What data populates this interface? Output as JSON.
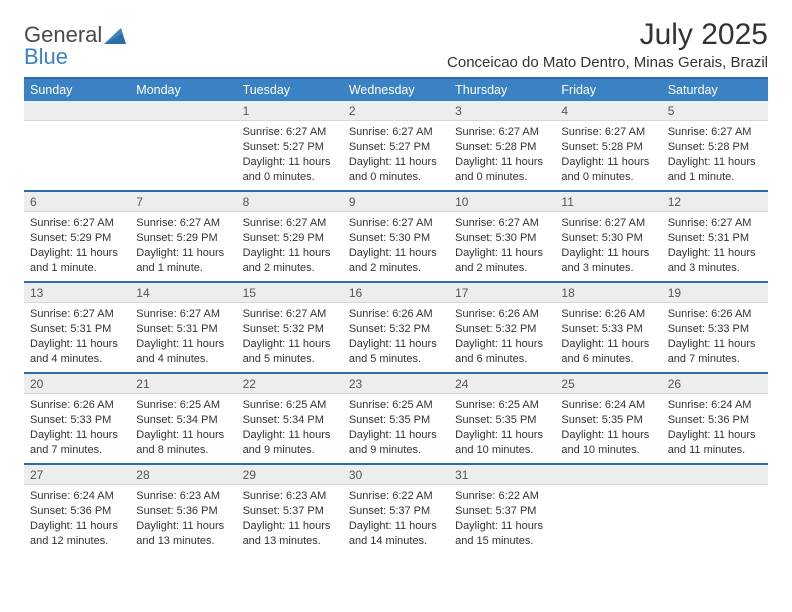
{
  "brand": {
    "word1": "General",
    "word2": "Blue",
    "logo_color": "#3b82c4",
    "text_color": "#4a4a4a"
  },
  "title": "July 2025",
  "location": "Conceicao do Mato Dentro, Minas Gerais, Brazil",
  "colors": {
    "header_bg": "#3b82c4",
    "header_text": "#ffffff",
    "rule": "#2e6ca8",
    "daynum_bg": "#eceded",
    "body_text": "#333333"
  },
  "weekdays": [
    "Sunday",
    "Monday",
    "Tuesday",
    "Wednesday",
    "Thursday",
    "Friday",
    "Saturday"
  ],
  "weeks": [
    [
      null,
      null,
      {
        "n": "1",
        "l1": "Sunrise: 6:27 AM",
        "l2": "Sunset: 5:27 PM",
        "l3": "Daylight: 11 hours",
        "l4": "and 0 minutes."
      },
      {
        "n": "2",
        "l1": "Sunrise: 6:27 AM",
        "l2": "Sunset: 5:27 PM",
        "l3": "Daylight: 11 hours",
        "l4": "and 0 minutes."
      },
      {
        "n": "3",
        "l1": "Sunrise: 6:27 AM",
        "l2": "Sunset: 5:28 PM",
        "l3": "Daylight: 11 hours",
        "l4": "and 0 minutes."
      },
      {
        "n": "4",
        "l1": "Sunrise: 6:27 AM",
        "l2": "Sunset: 5:28 PM",
        "l3": "Daylight: 11 hours",
        "l4": "and 0 minutes."
      },
      {
        "n": "5",
        "l1": "Sunrise: 6:27 AM",
        "l2": "Sunset: 5:28 PM",
        "l3": "Daylight: 11 hours",
        "l4": "and 1 minute."
      }
    ],
    [
      {
        "n": "6",
        "l1": "Sunrise: 6:27 AM",
        "l2": "Sunset: 5:29 PM",
        "l3": "Daylight: 11 hours",
        "l4": "and 1 minute."
      },
      {
        "n": "7",
        "l1": "Sunrise: 6:27 AM",
        "l2": "Sunset: 5:29 PM",
        "l3": "Daylight: 11 hours",
        "l4": "and 1 minute."
      },
      {
        "n": "8",
        "l1": "Sunrise: 6:27 AM",
        "l2": "Sunset: 5:29 PM",
        "l3": "Daylight: 11 hours",
        "l4": "and 2 minutes."
      },
      {
        "n": "9",
        "l1": "Sunrise: 6:27 AM",
        "l2": "Sunset: 5:30 PM",
        "l3": "Daylight: 11 hours",
        "l4": "and 2 minutes."
      },
      {
        "n": "10",
        "l1": "Sunrise: 6:27 AM",
        "l2": "Sunset: 5:30 PM",
        "l3": "Daylight: 11 hours",
        "l4": "and 2 minutes."
      },
      {
        "n": "11",
        "l1": "Sunrise: 6:27 AM",
        "l2": "Sunset: 5:30 PM",
        "l3": "Daylight: 11 hours",
        "l4": "and 3 minutes."
      },
      {
        "n": "12",
        "l1": "Sunrise: 6:27 AM",
        "l2": "Sunset: 5:31 PM",
        "l3": "Daylight: 11 hours",
        "l4": "and 3 minutes."
      }
    ],
    [
      {
        "n": "13",
        "l1": "Sunrise: 6:27 AM",
        "l2": "Sunset: 5:31 PM",
        "l3": "Daylight: 11 hours",
        "l4": "and 4 minutes."
      },
      {
        "n": "14",
        "l1": "Sunrise: 6:27 AM",
        "l2": "Sunset: 5:31 PM",
        "l3": "Daylight: 11 hours",
        "l4": "and 4 minutes."
      },
      {
        "n": "15",
        "l1": "Sunrise: 6:27 AM",
        "l2": "Sunset: 5:32 PM",
        "l3": "Daylight: 11 hours",
        "l4": "and 5 minutes."
      },
      {
        "n": "16",
        "l1": "Sunrise: 6:26 AM",
        "l2": "Sunset: 5:32 PM",
        "l3": "Daylight: 11 hours",
        "l4": "and 5 minutes."
      },
      {
        "n": "17",
        "l1": "Sunrise: 6:26 AM",
        "l2": "Sunset: 5:32 PM",
        "l3": "Daylight: 11 hours",
        "l4": "and 6 minutes."
      },
      {
        "n": "18",
        "l1": "Sunrise: 6:26 AM",
        "l2": "Sunset: 5:33 PM",
        "l3": "Daylight: 11 hours",
        "l4": "and 6 minutes."
      },
      {
        "n": "19",
        "l1": "Sunrise: 6:26 AM",
        "l2": "Sunset: 5:33 PM",
        "l3": "Daylight: 11 hours",
        "l4": "and 7 minutes."
      }
    ],
    [
      {
        "n": "20",
        "l1": "Sunrise: 6:26 AM",
        "l2": "Sunset: 5:33 PM",
        "l3": "Daylight: 11 hours",
        "l4": "and 7 minutes."
      },
      {
        "n": "21",
        "l1": "Sunrise: 6:25 AM",
        "l2": "Sunset: 5:34 PM",
        "l3": "Daylight: 11 hours",
        "l4": "and 8 minutes."
      },
      {
        "n": "22",
        "l1": "Sunrise: 6:25 AM",
        "l2": "Sunset: 5:34 PM",
        "l3": "Daylight: 11 hours",
        "l4": "and 9 minutes."
      },
      {
        "n": "23",
        "l1": "Sunrise: 6:25 AM",
        "l2": "Sunset: 5:35 PM",
        "l3": "Daylight: 11 hours",
        "l4": "and 9 minutes."
      },
      {
        "n": "24",
        "l1": "Sunrise: 6:25 AM",
        "l2": "Sunset: 5:35 PM",
        "l3": "Daylight: 11 hours",
        "l4": "and 10 minutes."
      },
      {
        "n": "25",
        "l1": "Sunrise: 6:24 AM",
        "l2": "Sunset: 5:35 PM",
        "l3": "Daylight: 11 hours",
        "l4": "and 10 minutes."
      },
      {
        "n": "26",
        "l1": "Sunrise: 6:24 AM",
        "l2": "Sunset: 5:36 PM",
        "l3": "Daylight: 11 hours",
        "l4": "and 11 minutes."
      }
    ],
    [
      {
        "n": "27",
        "l1": "Sunrise: 6:24 AM",
        "l2": "Sunset: 5:36 PM",
        "l3": "Daylight: 11 hours",
        "l4": "and 12 minutes."
      },
      {
        "n": "28",
        "l1": "Sunrise: 6:23 AM",
        "l2": "Sunset: 5:36 PM",
        "l3": "Daylight: 11 hours",
        "l4": "and 13 minutes."
      },
      {
        "n": "29",
        "l1": "Sunrise: 6:23 AM",
        "l2": "Sunset: 5:37 PM",
        "l3": "Daylight: 11 hours",
        "l4": "and 13 minutes."
      },
      {
        "n": "30",
        "l1": "Sunrise: 6:22 AM",
        "l2": "Sunset: 5:37 PM",
        "l3": "Daylight: 11 hours",
        "l4": "and 14 minutes."
      },
      {
        "n": "31",
        "l1": "Sunrise: 6:22 AM",
        "l2": "Sunset: 5:37 PM",
        "l3": "Daylight: 11 hours",
        "l4": "and 15 minutes."
      },
      null,
      null
    ]
  ]
}
